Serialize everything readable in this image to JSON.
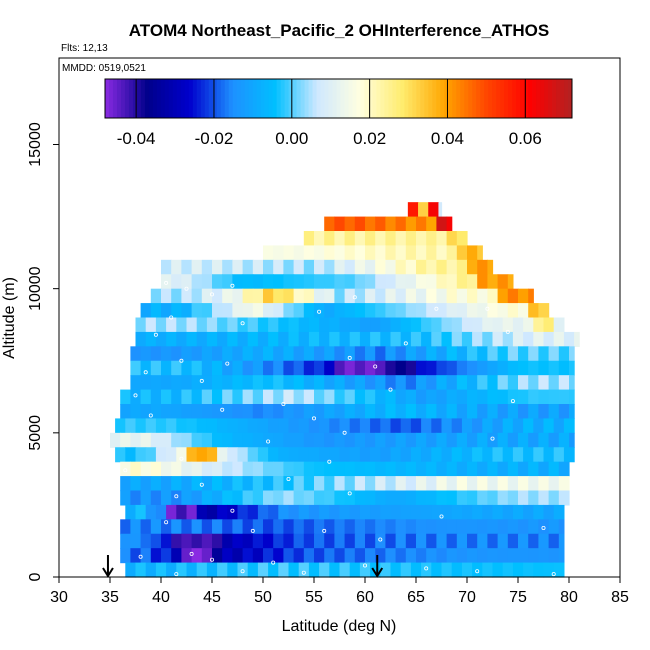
{
  "chart_data": {
    "type": "heatmap",
    "title": "ATOM4 Northeast_Pacific_2 OHInterference_ATHOS",
    "subtitle_flights": "Flts: 12,13",
    "subtitle_dates": "MMDD: 0519,0521",
    "xlabel": "Latitude (deg N)",
    "ylabel": "Altitude (m)",
    "xlim": [
      30,
      85
    ],
    "ylim": [
      0,
      18000
    ],
    "x_ticks": [
      "30",
      "35",
      "40",
      "45",
      "50",
      "55",
      "60",
      "65",
      "70",
      "75",
      "80",
      "85"
    ],
    "y_ticks": [
      "0",
      "5000",
      "10000",
      "15000"
    ],
    "colorbar": {
      "range": [
        -0.048,
        0.072
      ],
      "ticks": [
        "-0.04",
        "-0.02",
        "0.00",
        "0.02",
        "0.04",
        "0.06"
      ],
      "tick_values": [
        -0.04,
        -0.02,
        0.0,
        0.02,
        0.04,
        0.06
      ],
      "colors": [
        "#8a2be2",
        "#00008b",
        "#0000cd",
        "#1e90ff",
        "#00bfff",
        "#cfe8ff",
        "#ffffe0",
        "#ffec6e",
        "#ffa500",
        "#ff4500",
        "#ff0000",
        "#b22222"
      ]
    },
    "bin_height_m": 500,
    "bins": [
      {
        "alt": 12500,
        "segments": [
          [
            64.2,
            67.5,
            0.005
          ]
        ],
        "anomalies": [
          [
            64.2,
            64.8,
            0.06
          ],
          [
            65.4,
            65.9,
            0.03
          ],
          [
            66.5,
            67.0,
            0.065
          ]
        ]
      },
      {
        "alt": 12000,
        "segments": [
          [
            56.0,
            62.0,
            0.048
          ],
          [
            62.0,
            68.5,
            0.042
          ]
        ],
        "anomalies": [
          [
            67.0,
            68.5,
            0.065
          ]
        ]
      },
      {
        "alt": 11500,
        "segments": [
          [
            54.0,
            70.0,
            0.024
          ]
        ],
        "anomalies": [
          [
            68.0,
            70.0,
            0.03
          ]
        ]
      },
      {
        "alt": 11000,
        "segments": [
          [
            50.0,
            58.0,
            0.016
          ],
          [
            58.0,
            71.5,
            0.022
          ]
        ],
        "anomalies": [
          [
            69.5,
            71.5,
            0.036
          ]
        ]
      },
      {
        "alt": 10500,
        "segments": [
          [
            40.0,
            50.0,
            0.008
          ],
          [
            50.0,
            60.0,
            0.004
          ],
          [
            60.0,
            72.5,
            0.024
          ]
        ],
        "anomalies": [
          [
            70.0,
            72.5,
            0.04
          ]
        ]
      },
      {
        "alt": 10000,
        "segments": [
          [
            40.0,
            44.0,
            0.01
          ],
          [
            44.0,
            52.0,
            -0.006
          ],
          [
            52.0,
            66.0,
            0.0
          ],
          [
            66.0,
            74.5,
            0.026
          ]
        ],
        "anomalies": [
          [
            71.5,
            74.5,
            0.04
          ]
        ]
      },
      {
        "alt": 9500,
        "segments": [
          [
            39.0,
            45.0,
            0.004
          ],
          [
            45.0,
            49.0,
            0.012
          ],
          [
            49.0,
            53.0,
            0.034
          ],
          [
            53.0,
            62.0,
            0.004
          ],
          [
            62.0,
            76.5,
            0.018
          ]
        ],
        "anomalies": [
          [
            73.5,
            76.5,
            0.042
          ]
        ]
      },
      {
        "alt": 9000,
        "segments": [
          [
            38.0,
            46.0,
            -0.008
          ],
          [
            46.0,
            52.0,
            0.016
          ],
          [
            52.0,
            60.0,
            -0.01
          ],
          [
            60.0,
            70.0,
            0.004
          ],
          [
            70.0,
            78.0,
            0.018
          ]
        ],
        "anomalies": [
          [
            76.0,
            78.0,
            0.034
          ]
        ]
      },
      {
        "alt": 8500,
        "segments": [
          [
            37.5,
            48.0,
            0.004
          ],
          [
            48.0,
            56.0,
            -0.004
          ],
          [
            56.0,
            66.0,
            -0.012
          ],
          [
            66.0,
            79.5,
            0.012
          ]
        ],
        "anomalies": [
          [
            77.0,
            79.0,
            0.026
          ]
        ]
      },
      {
        "alt": 8000,
        "segments": [
          [
            37.5,
            50.0,
            -0.008
          ],
          [
            50.0,
            60.0,
            -0.006
          ],
          [
            60.0,
            72.0,
            -0.004
          ],
          [
            72.0,
            81.0,
            0.01
          ]
        ]
      },
      {
        "alt": 7500,
        "segments": [
          [
            37.0,
            45.0,
            -0.014
          ],
          [
            45.0,
            55.0,
            -0.008
          ],
          [
            55.0,
            68.0,
            -0.016
          ],
          [
            68.0,
            80.5,
            0.0
          ]
        ]
      },
      {
        "alt": 7000,
        "segments": [
          [
            37.0,
            48.0,
            -0.004
          ],
          [
            48.0,
            54.0,
            -0.016
          ],
          [
            54.0,
            70.0,
            -0.034
          ],
          [
            70.0,
            80.5,
            -0.004
          ]
        ],
        "anomalies": [
          [
            57.0,
            62.0,
            -0.045
          ],
          [
            62.0,
            65.0,
            -0.038
          ]
        ]
      },
      {
        "alt": 6500,
        "segments": [
          [
            37.0,
            46.0,
            -0.01
          ],
          [
            46.0,
            56.0,
            -0.004
          ],
          [
            56.0,
            72.0,
            -0.016
          ],
          [
            72.0,
            80.5,
            0.004
          ]
        ]
      },
      {
        "alt": 6000,
        "segments": [
          [
            36.0,
            46.0,
            -0.006
          ],
          [
            46.0,
            60.0,
            0.006
          ],
          [
            60.0,
            72.0,
            -0.012
          ],
          [
            72.0,
            80.5,
            -0.002
          ]
        ]
      },
      {
        "alt": 5500,
        "segments": [
          [
            36.0,
            44.0,
            -0.01
          ],
          [
            44.0,
            56.0,
            -0.016
          ],
          [
            56.0,
            70.0,
            -0.006
          ],
          [
            70.0,
            80.5,
            -0.012
          ]
        ]
      },
      {
        "alt": 5000,
        "segments": [
          [
            35.5,
            46.0,
            -0.002
          ],
          [
            46.0,
            58.0,
            -0.012
          ],
          [
            58.0,
            70.0,
            -0.02
          ],
          [
            70.0,
            80.5,
            -0.008
          ]
        ]
      },
      {
        "alt": 4500,
        "segments": [
          [
            35.0,
            42.0,
            0.012
          ],
          [
            42.0,
            50.0,
            -0.006
          ],
          [
            50.0,
            62.0,
            -0.014
          ],
          [
            62.0,
            80.5,
            -0.01
          ]
        ]
      },
      {
        "alt": 4000,
        "segments": [
          [
            35.5,
            40.0,
            -0.004
          ],
          [
            40.0,
            47.0,
            0.02
          ],
          [
            47.0,
            56.0,
            -0.008
          ],
          [
            56.0,
            66.0,
            -0.012
          ],
          [
            66.0,
            80.5,
            -0.004
          ]
        ],
        "anomalies": [
          [
            43.0,
            46.0,
            0.038
          ]
        ]
      },
      {
        "alt": 3500,
        "segments": [
          [
            36.0,
            41.0,
            0.018
          ],
          [
            41.0,
            50.0,
            0.008
          ],
          [
            50.0,
            60.0,
            -0.004
          ],
          [
            60.0,
            80.0,
            -0.008
          ]
        ]
      },
      {
        "alt": 3000,
        "segments": [
          [
            36.0,
            44.0,
            -0.01
          ],
          [
            44.0,
            58.0,
            -0.004
          ],
          [
            58.0,
            80.0,
            0.014
          ]
        ]
      },
      {
        "alt": 2500,
        "segments": [
          [
            36.0,
            48.0,
            -0.014
          ],
          [
            48.0,
            56.0,
            0.004
          ],
          [
            56.0,
            70.0,
            -0.01
          ],
          [
            70.0,
            80.0,
            0.004
          ]
        ]
      },
      {
        "alt": 2000,
        "segments": [
          [
            36.5,
            40.0,
            -0.006
          ],
          [
            40.0,
            45.0,
            -0.036
          ],
          [
            45.0,
            60.0,
            -0.014
          ],
          [
            60.0,
            79.5,
            -0.01
          ]
        ],
        "anomalies": [
          [
            41.0,
            44.0,
            -0.044
          ]
        ]
      },
      {
        "alt": 1500,
        "segments": [
          [
            36.0,
            44.0,
            -0.016
          ],
          [
            44.0,
            58.0,
            -0.02
          ],
          [
            58.0,
            79.5,
            -0.014
          ]
        ]
      },
      {
        "alt": 1000,
        "segments": [
          [
            36.0,
            39.0,
            -0.014
          ],
          [
            39.0,
            48.0,
            -0.034
          ],
          [
            48.0,
            60.0,
            -0.02
          ],
          [
            60.0,
            79.5,
            -0.016
          ]
        ],
        "anomalies": [
          [
            41.0,
            46.0,
            -0.042
          ]
        ]
      },
      {
        "alt": 500,
        "segments": [
          [
            36.0,
            40.0,
            -0.018
          ],
          [
            40.0,
            48.0,
            -0.034
          ],
          [
            48.0,
            60.0,
            -0.02
          ],
          [
            60.0,
            79.5,
            -0.014
          ]
        ],
        "anomalies": [
          [
            42.0,
            45.0,
            -0.048
          ]
        ]
      },
      {
        "alt": 0,
        "segments": [
          [
            36.5,
            44.0,
            -0.006
          ],
          [
            44.0,
            58.0,
            -0.002
          ],
          [
            58.0,
            79.5,
            -0.004
          ]
        ]
      }
    ],
    "sample_points": [
      [
        40.5,
        10200
      ],
      [
        42.5,
        10000
      ],
      [
        45.0,
        9800
      ],
      [
        47.0,
        10100
      ],
      [
        41.0,
        9000
      ],
      [
        55.5,
        9200
      ],
      [
        67.0,
        9300
      ],
      [
        72.0,
        9300
      ],
      [
        48.0,
        8800
      ],
      [
        39.5,
        8400
      ],
      [
        64.0,
        8100
      ],
      [
        74.0,
        8500
      ],
      [
        42.0,
        7500
      ],
      [
        38.5,
        7100
      ],
      [
        58.5,
        7600
      ],
      [
        61.0,
        7300
      ],
      [
        46.5,
        7400
      ],
      [
        44.0,
        6800
      ],
      [
        37.5,
        6300
      ],
      [
        62.5,
        6500
      ],
      [
        74.5,
        6100
      ],
      [
        52.0,
        6000
      ],
      [
        46.0,
        5800
      ],
      [
        39.0,
        5600
      ],
      [
        55.0,
        5500
      ],
      [
        50.5,
        4700
      ],
      [
        58.0,
        5000
      ],
      [
        72.5,
        4800
      ],
      [
        42.0,
        4100
      ],
      [
        56.5,
        4000
      ],
      [
        36.5,
        3700
      ],
      [
        44.0,
        3200
      ],
      [
        52.5,
        3400
      ],
      [
        41.5,
        2800
      ],
      [
        58.5,
        2900
      ],
      [
        47.0,
        2300
      ],
      [
        40.5,
        1900
      ],
      [
        67.5,
        2100
      ],
      [
        56.0,
        1600
      ],
      [
        49.0,
        1600
      ],
      [
        61.5,
        1300
      ],
      [
        77.5,
        1700
      ],
      [
        38.0,
        700
      ],
      [
        43.0,
        800
      ],
      [
        45.0,
        600
      ],
      [
        51.0,
        500
      ],
      [
        60.0,
        400
      ],
      [
        66.0,
        300
      ],
      [
        71.0,
        200
      ],
      [
        36.0,
        100
      ],
      [
        41.5,
        100
      ],
      [
        48.0,
        200
      ],
      [
        54.0,
        150
      ],
      [
        78.5,
        100
      ],
      [
        59.0,
        9700
      ]
    ],
    "markers": [
      {
        "lat": 34.8,
        "direction": "down"
      },
      {
        "lat": 61.2,
        "direction": "down"
      }
    ]
  }
}
